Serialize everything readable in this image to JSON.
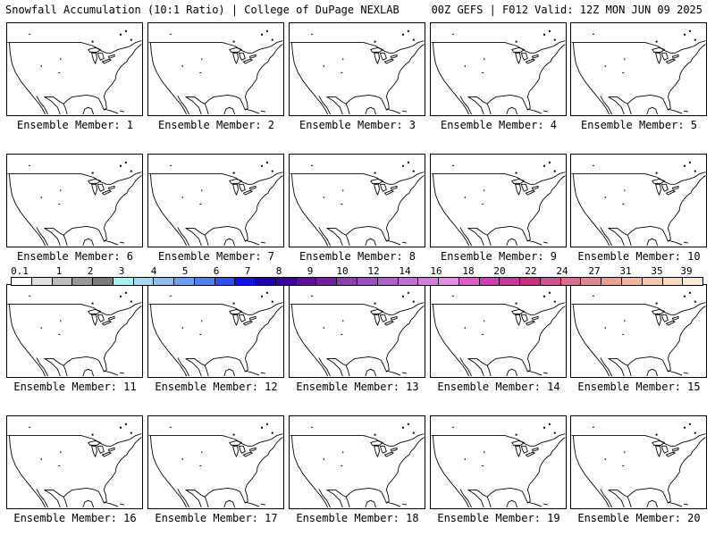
{
  "header": {
    "left_title": "Snowfall Accumulation (10:1 Ratio) | College of DuPage NEXLAB",
    "right_title": "00Z GEFS | F012 Valid: 12Z MON JUN 09 2025"
  },
  "legend": {
    "labels": [
      "0.1",
      "1",
      "2",
      "3",
      "4",
      "5",
      "6",
      "7",
      "8",
      "9",
      "10",
      "12",
      "14",
      "16",
      "18",
      "20",
      "22",
      "24",
      "27",
      "31",
      "35",
      "39"
    ],
    "colors": [
      "#ffffff",
      "#e0e0e0",
      "#bdbdbd",
      "#9a9a9a",
      "#7a7a7a",
      "#a8f0f0",
      "#a8d8f0",
      "#8cbcf0",
      "#6ea0f0",
      "#5080f0",
      "#3050f0",
      "#1010f0",
      "#2000b0",
      "#3a00a0",
      "#5a1090",
      "#7020a0",
      "#8a40b0",
      "#9a50c0",
      "#b060c8",
      "#c070d0",
      "#d080d8",
      "#e090e0",
      "#d860c8",
      "#d040b0",
      "#c83898",
      "#c83080",
      "#d05090",
      "#d87090",
      "#e08890",
      "#e8a090",
      "#f0b8a0",
      "#f4c8b0",
      "#f8d8c0",
      "#fbe8d8"
    ]
  },
  "members": [
    "Ensemble Member: 1",
    "Ensemble Member: 2",
    "Ensemble Member: 3",
    "Ensemble Member: 4",
    "Ensemble Member: 5",
    "Ensemble Member: 6",
    "Ensemble Member: 7",
    "Ensemble Member: 8",
    "Ensemble Member: 9",
    "Ensemble Member: 10",
    "Ensemble Member: 11",
    "Ensemble Member: 12",
    "Ensemble Member: 13",
    "Ensemble Member: 14",
    "Ensemble Member: 15",
    "Ensemble Member: 16",
    "Ensemble Member: 17",
    "Ensemble Member: 18",
    "Ensemble Member: 19",
    "Ensemble Member: 20"
  ]
}
